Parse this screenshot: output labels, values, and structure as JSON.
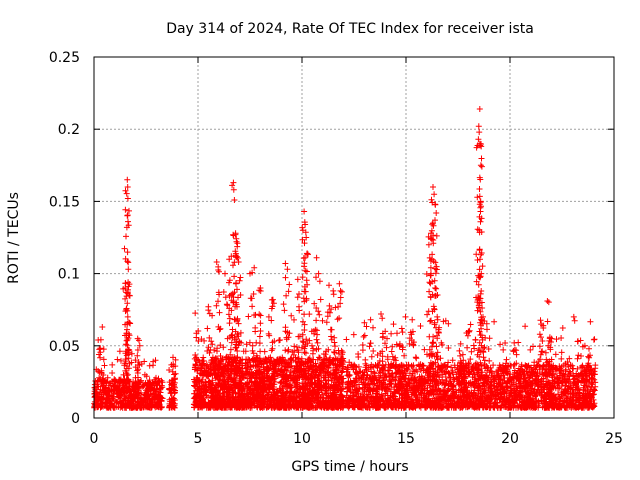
{
  "chart_data": {
    "type": "scatter",
    "title": "Day 314 of 2024, Rate Of TEC Index for receiver ista",
    "xlabel": "GPS time / hours",
    "ylabel": "ROTI / TECUs",
    "xlim": [
      0,
      25
    ],
    "ylim": [
      0,
      0.25
    ],
    "xticks": [
      0,
      5,
      10,
      15,
      20,
      25
    ],
    "xtick_labels": [
      "0",
      "5",
      "10",
      "15",
      "20",
      "25"
    ],
    "yticks": [
      0,
      0.05,
      0.1,
      0.15,
      0.2,
      0.25
    ],
    "ytick_labels": [
      "0",
      "0.05",
      "0.1",
      "0.15",
      "0.2",
      "0.25"
    ],
    "grid": true,
    "marker": "+",
    "color": "#ff0000",
    "series": [
      {
        "name": "ROTI",
        "segments": [
          {
            "x_start": 0.0,
            "x_end": 3.3,
            "base": 0.015,
            "spread": 0.02,
            "n": 600
          },
          {
            "x_start": 3.6,
            "x_end": 3.9,
            "base": 0.02,
            "spread": 0.02,
            "n": 60
          },
          {
            "x_start": 4.8,
            "x_end": 12.0,
            "base": 0.025,
            "spread": 0.035,
            "n": 2200
          },
          {
            "x_start": 12.1,
            "x_end": 24.1,
            "base": 0.022,
            "spread": 0.03,
            "n": 2600
          }
        ],
        "peaks": [
          {
            "x": 0.4,
            "y": 0.063
          },
          {
            "x": 0.2,
            "y": 0.054
          },
          {
            "x": 1.5,
            "y": 0.09
          },
          {
            "x": 1.55,
            "y": 0.087
          },
          {
            "x": 1.6,
            "y": 0.165
          },
          {
            "x": 1.62,
            "y": 0.16
          },
          {
            "x": 1.63,
            "y": 0.152
          },
          {
            "x": 1.6,
            "y": 0.14
          },
          {
            "x": 1.58,
            "y": 0.132
          },
          {
            "x": 1.65,
            "y": 0.103
          },
          {
            "x": 1.7,
            "y": 0.066
          },
          {
            "x": 1.55,
            "y": 0.075
          },
          {
            "x": 2.1,
            "y": 0.055
          },
          {
            "x": 2.2,
            "y": 0.05
          },
          {
            "x": 3.8,
            "y": 0.042
          },
          {
            "x": 5.5,
            "y": 0.077
          },
          {
            "x": 5.9,
            "y": 0.108
          },
          {
            "x": 6.0,
            "y": 0.087
          },
          {
            "x": 6.3,
            "y": 0.1
          },
          {
            "x": 6.5,
            "y": 0.11
          },
          {
            "x": 6.7,
            "y": 0.163
          },
          {
            "x": 6.72,
            "y": 0.158
          },
          {
            "x": 6.75,
            "y": 0.151
          },
          {
            "x": 6.8,
            "y": 0.127
          },
          {
            "x": 6.85,
            "y": 0.122
          },
          {
            "x": 6.9,
            "y": 0.121
          },
          {
            "x": 6.6,
            "y": 0.112
          },
          {
            "x": 6.95,
            "y": 0.108
          },
          {
            "x": 7.0,
            "y": 0.095
          },
          {
            "x": 7.5,
            "y": 0.1
          },
          {
            "x": 7.7,
            "y": 0.104
          },
          {
            "x": 8.0,
            "y": 0.09
          },
          {
            "x": 8.6,
            "y": 0.082
          },
          {
            "x": 9.2,
            "y": 0.107
          },
          {
            "x": 9.3,
            "y": 0.103
          },
          {
            "x": 9.8,
            "y": 0.096
          },
          {
            "x": 10.1,
            "y": 0.143
          },
          {
            "x": 10.15,
            "y": 0.134
          },
          {
            "x": 10.2,
            "y": 0.125
          },
          {
            "x": 10.25,
            "y": 0.114
          },
          {
            "x": 10.1,
            "y": 0.105
          },
          {
            "x": 10.7,
            "y": 0.111
          },
          {
            "x": 10.8,
            "y": 0.1
          },
          {
            "x": 11.3,
            "y": 0.092
          },
          {
            "x": 11.5,
            "y": 0.088
          },
          {
            "x": 11.8,
            "y": 0.093
          },
          {
            "x": 11.85,
            "y": 0.088
          },
          {
            "x": 13.0,
            "y": 0.066
          },
          {
            "x": 13.3,
            "y": 0.068
          },
          {
            "x": 13.8,
            "y": 0.072
          },
          {
            "x": 14.0,
            "y": 0.06
          },
          {
            "x": 14.4,
            "y": 0.065
          },
          {
            "x": 14.8,
            "y": 0.062
          },
          {
            "x": 15.3,
            "y": 0.068
          },
          {
            "x": 16.1,
            "y": 0.12
          },
          {
            "x": 16.2,
            "y": 0.128
          },
          {
            "x": 16.3,
            "y": 0.16
          },
          {
            "x": 16.35,
            "y": 0.155
          },
          {
            "x": 16.4,
            "y": 0.148
          },
          {
            "x": 16.45,
            "y": 0.142
          },
          {
            "x": 16.3,
            "y": 0.135
          },
          {
            "x": 16.25,
            "y": 0.11
          },
          {
            "x": 16.2,
            "y": 0.1
          },
          {
            "x": 16.4,
            "y": 0.09
          },
          {
            "x": 16.5,
            "y": 0.07
          },
          {
            "x": 17.6,
            "y": 0.043
          },
          {
            "x": 18.0,
            "y": 0.06
          },
          {
            "x": 18.55,
            "y": 0.214
          },
          {
            "x": 18.5,
            "y": 0.202
          },
          {
            "x": 18.52,
            "y": 0.198
          },
          {
            "x": 18.48,
            "y": 0.193
          },
          {
            "x": 18.55,
            "y": 0.19
          },
          {
            "x": 18.6,
            "y": 0.175
          },
          {
            "x": 18.55,
            "y": 0.148
          },
          {
            "x": 18.58,
            "y": 0.143
          },
          {
            "x": 18.6,
            "y": 0.113
          },
          {
            "x": 18.62,
            "y": 0.1
          },
          {
            "x": 18.65,
            "y": 0.08
          },
          {
            "x": 18.7,
            "y": 0.07
          },
          {
            "x": 20.2,
            "y": 0.052
          },
          {
            "x": 21.5,
            "y": 0.065
          },
          {
            "x": 21.6,
            "y": 0.064
          },
          {
            "x": 21.8,
            "y": 0.081
          },
          {
            "x": 22.0,
            "y": 0.055
          },
          {
            "x": 23.6,
            "y": 0.05
          },
          {
            "x": 23.8,
            "y": 0.048
          }
        ]
      }
    ]
  }
}
